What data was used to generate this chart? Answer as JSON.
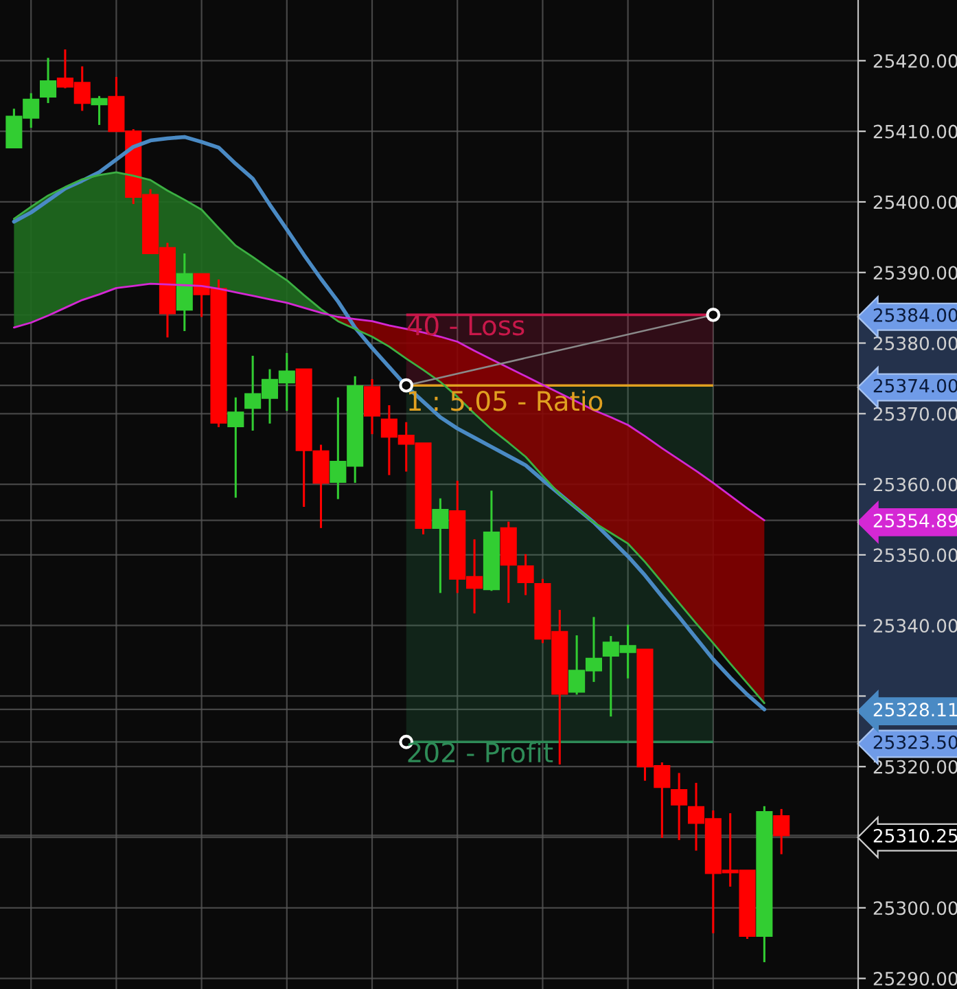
{
  "chart_data": {
    "type": "candlestick",
    "categories": [
      null,
      null,
      null,
      null,
      null,
      null,
      null,
      null,
      null,
      null,
      null,
      null,
      null,
      null,
      null,
      null,
      null,
      null,
      null,
      null,
      null,
      null,
      null,
      null,
      null,
      null,
      null,
      null,
      null,
      null,
      null,
      null,
      null,
      null,
      null,
      null,
      null,
      null,
      null,
      null,
      null,
      null,
      null,
      null,
      null,
      null
    ],
    "ohlc": [
      [
        25407.7,
        25413.2,
        25407.7,
        25412.1
      ],
      [
        25411.9,
        25415.4,
        25410.5,
        25414.5
      ],
      [
        25414.9,
        25420.4,
        25414.0,
        25417.1
      ],
      [
        25417.5,
        25421.6,
        25416.1,
        25416.3
      ],
      [
        25416.9,
        25419.2,
        25412.9,
        25414.0
      ],
      [
        25413.8,
        25415.0,
        25410.9,
        25414.6
      ],
      [
        25414.9,
        25417.7,
        25410.0,
        25410.0
      ],
      [
        25410.0,
        25410.3,
        25399.7,
        25400.7
      ],
      [
        25401.0,
        25401.8,
        25392.7,
        25392.7
      ],
      [
        25393.5,
        25394.2,
        25380.8,
        25384.2
      ],
      [
        25384.7,
        25392.7,
        25381.7,
        25389.8
      ],
      [
        25389.8,
        25389.8,
        25383.7,
        25386.9
      ],
      [
        25387.7,
        25389.0,
        25368.1,
        25368.7
      ],
      [
        25368.2,
        25372.3,
        25358.1,
        25370.2
      ],
      [
        25370.8,
        25378.2,
        25367.6,
        25372.8
      ],
      [
        25372.2,
        25376.3,
        25368.6,
        25374.8
      ],
      [
        25374.4,
        25378.6,
        25370.4,
        25376.0
      ],
      [
        25376.3,
        25376.3,
        25356.8,
        25364.8
      ],
      [
        25364.7,
        25365.6,
        25353.8,
        25360.2
      ],
      [
        25360.3,
        25372.3,
        25357.9,
        25363.2
      ],
      [
        25362.6,
        25375.3,
        25360.2,
        25373.9
      ],
      [
        25373.8,
        25374.9,
        25367.1,
        25369.7
      ],
      [
        25369.2,
        25371.2,
        25361.3,
        25366.7
      ],
      [
        25366.9,
        25368.8,
        25361.8,
        25365.7
      ],
      [
        25365.8,
        25365.8,
        25352.9,
        25353.8
      ],
      [
        25353.8,
        25358.0,
        25344.6,
        25356.4
      ],
      [
        25356.2,
        25360.5,
        25344.6,
        25346.6
      ],
      [
        25346.9,
        25352.2,
        25341.7,
        25345.3
      ],
      [
        25345.1,
        25359.1,
        25344.9,
        25353.2
      ],
      [
        25353.8,
        25354.7,
        25343.2,
        25348.6
      ],
      [
        25348.4,
        25350.1,
        25344.3,
        25346.1
      ],
      [
        25345.9,
        25346.6,
        25337.5,
        25338.1
      ],
      [
        25339.1,
        25342.2,
        25320.3,
        25330.3
      ],
      [
        25330.6,
        25338.6,
        25330.2,
        25333.6
      ],
      [
        25333.6,
        25341.2,
        25332.0,
        25335.3
      ],
      [
        25335.7,
        25338.5,
        25327.1,
        25337.6
      ],
      [
        25336.2,
        25340.1,
        25332.5,
        25337.1
      ],
      [
        25336.6,
        25336.6,
        25318.0,
        25320.0
      ],
      [
        25320.1,
        25320.6,
        25309.9,
        25317.1
      ],
      [
        25316.7,
        25319.1,
        25309.6,
        25314.6
      ],
      [
        25314.3,
        25317.7,
        25308.1,
        25312.0
      ],
      [
        25312.6,
        25313.8,
        25296.4,
        25304.9
      ],
      [
        25305.3,
        25313.4,
        25303.0,
        25305.0
      ],
      [
        25305.3,
        25305.3,
        25295.6,
        25296.0
      ],
      [
        25296.0,
        25314.4,
        25292.3,
        25313.6
      ],
      [
        25313.0,
        25314.0,
        25307.6,
        25310.25
      ]
    ],
    "colors": [
      "#32cd32",
      "#32cd32",
      "#32cd32",
      "#ff0000",
      "#ff0000",
      "#32cd32",
      "#ff0000",
      "#ff0000",
      "#ff0000",
      "#ff0000",
      "#32cd32",
      "#ff0000",
      "#ff0000",
      "#32cd32",
      "#32cd32",
      "#32cd32",
      "#32cd32",
      "#ff0000",
      "#ff0000",
      "#32cd32",
      "#32cd32",
      "#ff0000",
      "#ff0000",
      "#ff0000",
      "#ff0000",
      "#32cd32",
      "#ff0000",
      "#ff0000",
      "#32cd32",
      "#ff0000",
      "#ff0000",
      "#ff0000",
      "#ff0000",
      "#32cd32",
      "#32cd32",
      "#32cd32",
      "#32cd32",
      "#ff0000",
      "#ff0000",
      "#ff0000",
      "#ff0000",
      "#ff0000",
      "#ff0000",
      "#ff0000",
      "#32cd32",
      "#ff0000"
    ],
    "series": [
      {
        "type": "line",
        "color": "#4a8ac4",
        "values": [
          25397.2,
          25398.5,
          25400.2,
          25401.9,
          25403.0,
          25404.2,
          25406.0,
          25407.8,
          25408.7,
          25409.0,
          25409.2,
          25408.5,
          25407.7,
          25405.4,
          25403.3,
          25399.6,
          25396.1,
          25392.5,
          25389.1,
          25385.9,
          25382.2,
          25379.3,
          25376.6,
          25373.9,
          25371.7,
          25369.5,
          25367.9,
          25366.6,
          25365.3,
          25364.0,
          25362.7,
          25360.6,
          25358.6,
          25356.6,
          25354.6,
          25352.2,
          25349.8,
          25347.1,
          25344.1,
          25341.2,
          25338.2,
          25335.2,
          25332.6,
          25330.2,
          25328.1,
          null
        ]
      },
      {
        "type": "line",
        "color": "#3cb043",
        "values": [
          25397.6,
          25399.3,
          25400.9,
          25402.1,
          25403.2,
          25403.8,
          25404.2,
          25403.7,
          25403.1,
          25401.6,
          25400.3,
          25398.9,
          25396.3,
          25393.8,
          25392.2,
          25390.5,
          25388.9,
          25386.8,
          25384.8,
          25383.1,
          25382.0,
          25380.9,
          25379.5,
          25377.8,
          25376.2,
          25374.5,
          25372.4,
          25370.0,
          25367.8,
          25365.9,
          25363.9,
          25361.2,
          25358.6,
          25356.6,
          25354.6,
          25353.1,
          25351.6,
          25349.0,
          25346.1,
          25343.2,
          25340.3,
          25337.5,
          25334.6,
          25331.8,
          25329.0,
          null
        ]
      },
      {
        "type": "line",
        "color": "#d428d4",
        "values": [
          25382.2,
          25382.9,
          25383.9,
          25385.0,
          25386.1,
          25386.9,
          25387.8,
          25388.1,
          25388.4,
          25388.3,
          25388.2,
          25388.1,
          25387.7,
          25387.2,
          25386.7,
          25386.2,
          25385.7,
          25385.0,
          25384.3,
          25383.7,
          25383.4,
          25383.1,
          25382.5,
          25382.0,
          25381.5,
          25380.9,
          25380.2,
          25378.9,
          25377.7,
          25376.5,
          25375.3,
          25374.1,
          25372.9,
          25371.7,
          25370.5,
          25369.5,
          25368.4,
          25366.8,
          25365.1,
          25363.5,
          25361.9,
          25360.2,
          25358.4,
          25356.6,
          25354.9,
          null
        ]
      }
    ],
    "bands": [
      {
        "axis": "y",
        "from": 25374,
        "to": 25384,
        "label": "40 - Loss",
        "color": "#c8184a"
      },
      {
        "axis": "y",
        "from": 25323.5,
        "to": 25374,
        "label": "202 - Profit",
        "color": "#2e8b57"
      }
    ],
    "ref_lines": [
      {
        "axis": "y",
        "value": 25374,
        "color": "#e0a020"
      }
    ],
    "annotations": [
      "1 : 5.05 - Ratio"
    ],
    "ylim": [
      25288.5,
      25428.6
    ],
    "yticks": [
      {
        "value": 25290,
        "label": "25290.00"
      },
      {
        "value": 25300,
        "label": "25300.00"
      },
      {
        "value": 25310,
        "label": null
      },
      {
        "value": 25310.25,
        "label": "25310.25"
      },
      {
        "value": 25320,
        "label": "25320.00"
      },
      {
        "value": 25323.5,
        "label": "25323.50"
      },
      {
        "value": 25328.11,
        "label": "25328.11"
      },
      {
        "value": 25330,
        "label": null
      },
      {
        "value": 25340,
        "label": "25340.00"
      },
      {
        "value": 25350,
        "label": "25350.00"
      },
      {
        "value": 25354.89,
        "label": "25354.89"
      },
      {
        "value": 25360,
        "label": "25360.00"
      },
      {
        "value": 25370,
        "label": "25370.00"
      },
      {
        "value": 25374,
        "label": "25374.00"
      },
      {
        "value": 25380,
        "label": "25380.00"
      },
      {
        "value": 25384,
        "label": "25384.00"
      },
      {
        "value": 25390,
        "label": "25390.00"
      },
      {
        "value": 25400,
        "label": "25400.00"
      },
      {
        "value": 25410,
        "label": "25410.00"
      },
      {
        "value": 25420,
        "label": "25420.00"
      }
    ],
    "grid": true,
    "tick_labels": "y"
  }
}
